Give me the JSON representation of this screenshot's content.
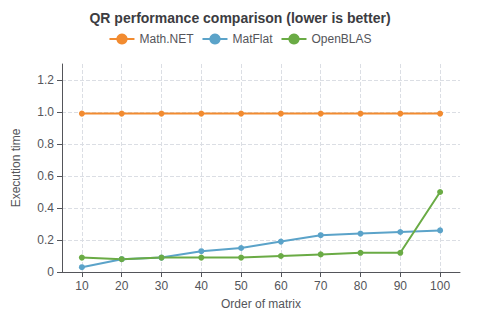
{
  "chart_data": {
    "type": "line",
    "title": "QR performance comparison (lower is better)",
    "xlabel": "Order of matrix",
    "ylabel": "Execution time",
    "x": [
      10,
      20,
      30,
      40,
      50,
      60,
      70,
      80,
      90,
      100
    ],
    "series": [
      {
        "name": "Math.NET",
        "color": "#F28B30",
        "marker": "circle",
        "values": [
          0.99,
          0.99,
          0.99,
          0.99,
          0.99,
          0.99,
          0.99,
          0.99,
          0.99,
          0.99
        ]
      },
      {
        "name": "MatFlat",
        "color": "#5BA3C9",
        "marker": "circle",
        "values": [
          0.03,
          0.08,
          0.09,
          0.13,
          0.15,
          0.19,
          0.23,
          0.24,
          0.25,
          0.26
        ]
      },
      {
        "name": "OpenBLAS",
        "color": "#6AAB45",
        "marker": "circle",
        "values": [
          0.09,
          0.08,
          0.09,
          0.09,
          0.09,
          0.1,
          0.11,
          0.12,
          0.12,
          0.5
        ]
      }
    ],
    "xlim": [
      5,
      105
    ],
    "xticks": [
      10,
      20,
      30,
      40,
      50,
      60,
      70,
      80,
      90,
      100
    ],
    "ylim": [
      0,
      1.3
    ],
    "yticks": [
      0,
      0.2,
      0.4,
      0.6,
      0.8,
      {
        "value": 1,
        "label": "1.0"
      },
      1.2
    ],
    "grid": true,
    "legend": "top"
  }
}
